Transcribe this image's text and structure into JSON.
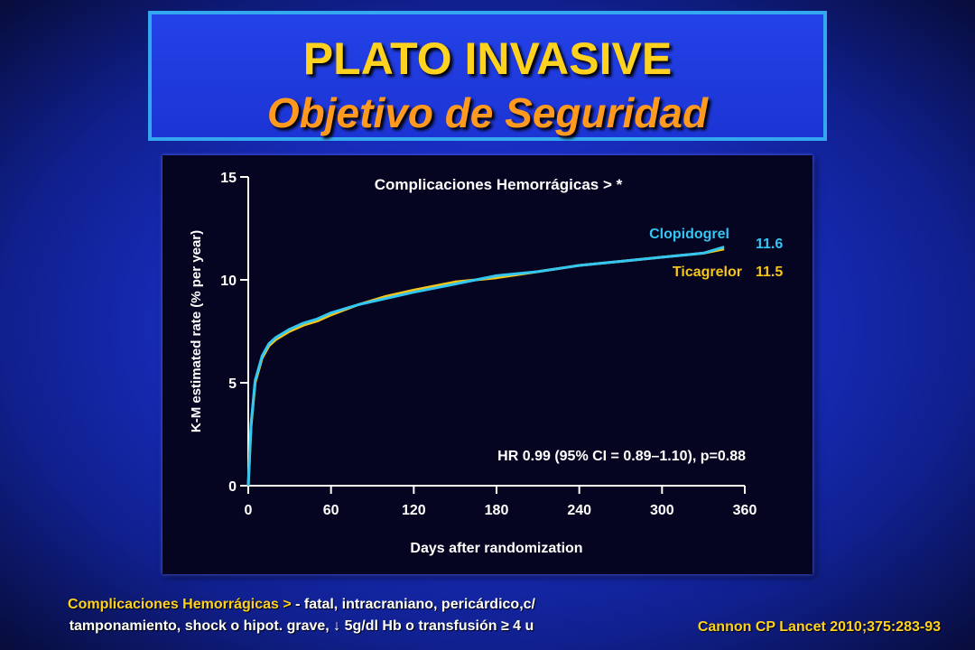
{
  "slide": {
    "title": "PLATO INVASIVE",
    "subtitle": "Objetivo de Seguridad"
  },
  "chart_data": {
    "type": "line",
    "title": "Complicaciones Hemorrágicas > *",
    "xlabel": "Days after randomization",
    "ylabel": "K-M estimated rate (% per year)",
    "xlim": [
      0,
      360
    ],
    "ylim": [
      0,
      15
    ],
    "x_ticks": [
      0,
      60,
      120,
      180,
      240,
      300,
      360
    ],
    "y_ticks": [
      0,
      5,
      10,
      15
    ],
    "x_tick_labels": [
      "0",
      "60",
      "120",
      "180",
      "240",
      "300",
      "360"
    ],
    "y_tick_labels": [
      "0",
      "5",
      "10",
      "15"
    ],
    "grid": false,
    "annotation": "HR 0.99 (95% CI = 0.89–1.10), p=0.88",
    "series": [
      {
        "name": "Clopidogrel",
        "end_label": "11.6",
        "color": "#33c6f2",
        "x": [
          0,
          2,
          5,
          10,
          15,
          20,
          30,
          40,
          50,
          60,
          80,
          100,
          120,
          150,
          180,
          210,
          240,
          270,
          300,
          330,
          345
        ],
        "y": [
          0,
          3.0,
          5.1,
          6.3,
          6.9,
          7.2,
          7.6,
          7.9,
          8.1,
          8.4,
          8.8,
          9.1,
          9.4,
          9.8,
          10.2,
          10.4,
          10.7,
          10.9,
          11.1,
          11.3,
          11.6
        ]
      },
      {
        "name": "Ticagrelor",
        "end_label": "11.5",
        "color": "#f5c518",
        "x": [
          0,
          2,
          5,
          10,
          15,
          20,
          30,
          40,
          50,
          60,
          80,
          100,
          120,
          150,
          180,
          210,
          240,
          270,
          300,
          330,
          345
        ],
        "y": [
          0,
          2.9,
          5.0,
          6.2,
          6.8,
          7.1,
          7.5,
          7.8,
          8.0,
          8.3,
          8.8,
          9.2,
          9.5,
          9.9,
          10.1,
          10.4,
          10.7,
          10.9,
          11.1,
          11.3,
          11.5
        ]
      }
    ]
  },
  "footnote": {
    "term": "Complicaciones Hemorrágicas >",
    "line1_rest": " - fatal, intracraniano, pericárdico,c/",
    "line2": "tamponamiento, shock o hipot. grave, ↓ 5g/dl Hb o transfusión ≥ 4 u"
  },
  "citation": "Cannon CP Lancet 2010;375:283-93"
}
